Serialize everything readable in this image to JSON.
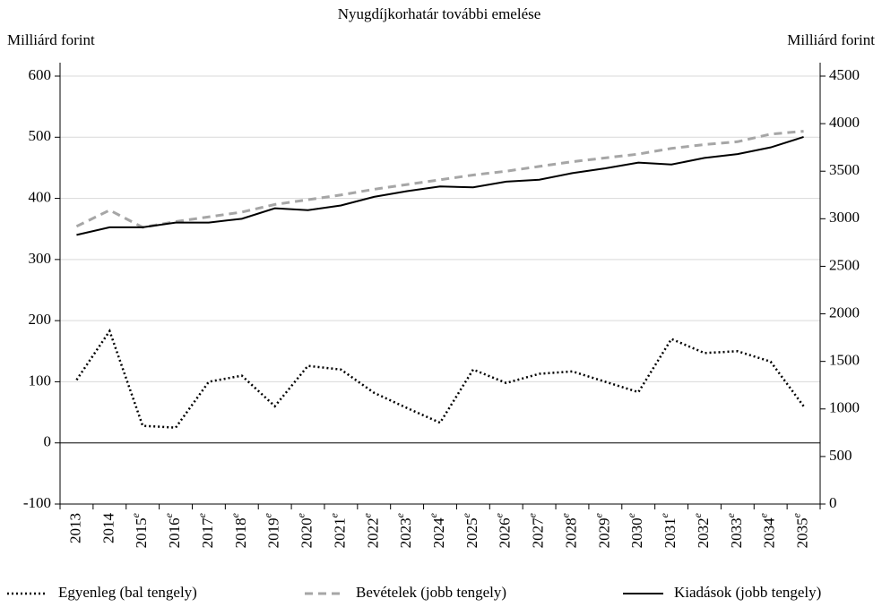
{
  "chart_data": {
    "type": "line",
    "title": "Nyugdíjkorhatár további emelése",
    "y_label": "Milliárd forint",
    "y2_label": "Milliárd forint",
    "categories": [
      "2013",
      "2014",
      "2015",
      "2016",
      "2017",
      "2018",
      "2019",
      "2020",
      "2021",
      "2022",
      "2023",
      "2024",
      "2025",
      "2026",
      "2027",
      "2028",
      "2029",
      "2030",
      "2031",
      "2032",
      "2033",
      "2034",
      "2035"
    ],
    "category_notes": [
      null,
      null,
      "e",
      "e",
      "e",
      "e",
      "e",
      "e",
      "e",
      "e",
      "e",
      "e",
      "e",
      "e",
      "e",
      "e",
      "e",
      "e",
      "e",
      "e",
      "e",
      "e",
      "e"
    ],
    "ylim": [
      -100,
      600
    ],
    "yticks": [
      -100,
      0,
      100,
      200,
      300,
      400,
      500,
      600
    ],
    "y2lim": [
      0,
      4500
    ],
    "y2ticks": [
      0,
      500,
      1000,
      1500,
      2000,
      2500,
      3000,
      3500,
      4000,
      4500
    ],
    "grid": true,
    "series": [
      {
        "name": "Egyenleg (bal tengely)",
        "color": "#000000",
        "style": "dotted",
        "values": [
          103,
          183,
          28,
          25,
          100,
          110,
          60,
          126,
          120,
          82,
          57,
          33,
          120,
          98,
          113,
          117,
          100,
          83,
          170,
          147,
          150,
          133,
          60
        ]
      },
      {
        "name": "Bevételek (jobb tengely)",
        "color": "#a6a6a6",
        "style": "dashed",
        "axis": "y2",
        "values": [
          2920,
          3090,
          2910,
          2970,
          3020,
          3070,
          3150,
          3200,
          3250,
          3310,
          3360,
          3410,
          3460,
          3500,
          3550,
          3600,
          3640,
          3680,
          3740,
          3780,
          3810,
          3890,
          3920
        ]
      },
      {
        "name": "Kiadások (jobb tengely)",
        "color": "#000000",
        "style": "solid",
        "axis": "y2",
        "values": [
          2830,
          2910,
          2910,
          2960,
          2960,
          3000,
          3110,
          3090,
          3140,
          3230,
          3290,
          3340,
          3330,
          3390,
          3410,
          3480,
          3530,
          3590,
          3570,
          3640,
          3680,
          3750,
          3860
        ]
      }
    ]
  }
}
